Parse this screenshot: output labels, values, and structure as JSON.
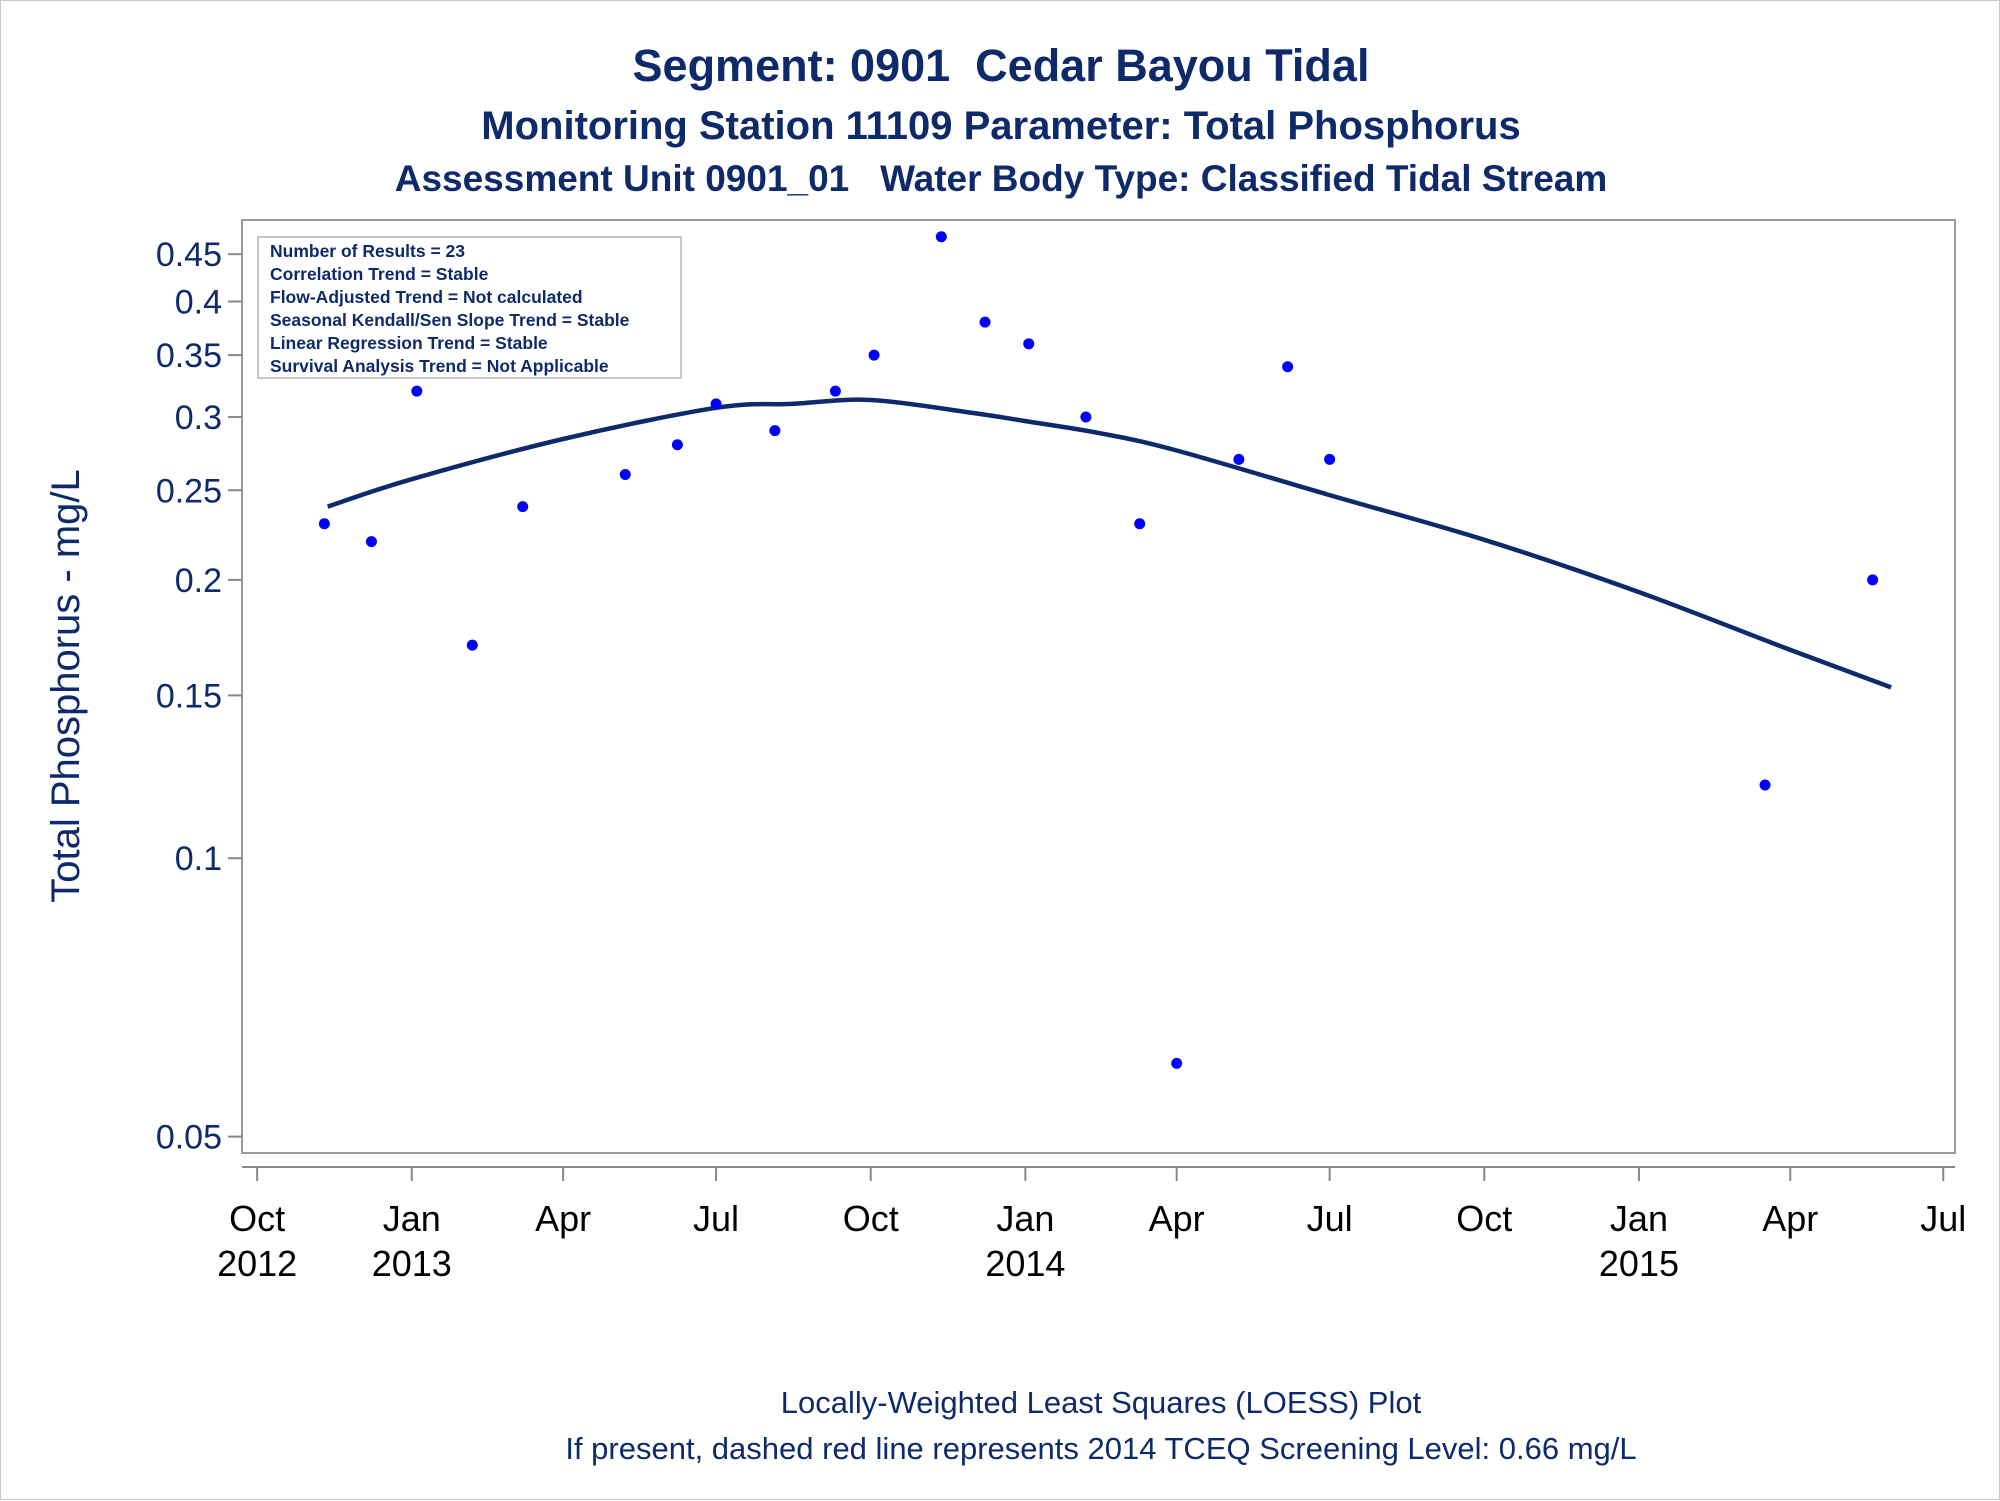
{
  "titles": {
    "line1": "Segment: 0901  Cedar Bayou Tidal",
    "line2": "Monitoring Station 11109 Parameter: Total Phosphorus",
    "line3": "Assessment Unit 0901_01   Water Body Type: Classified Tidal Stream"
  },
  "inset_lines": [
    "Number of Results = 23",
    "Correlation Trend = Stable",
    "Flow-Adjusted Trend = Not calculated",
    "Seasonal Kendall/Sen Slope Trend = Stable",
    "Linear Regression Trend = Stable",
    "Survival Analysis Trend = Not Applicable"
  ],
  "footnotes": [
    "Locally-Weighted Least Squares (LOESS) Plot",
    "If present, dashed red line represents 2014 TCEQ Screening Level: 0.66 mg/L"
  ],
  "colors": {
    "text": "#0e2a6b",
    "points": "#0000ff",
    "loess_line": "#0e2a6b",
    "axis": "#888888"
  },
  "chart_data": {
    "type": "scatter",
    "ylabel": "Total Phosphorus - mg/L",
    "xlabel": "",
    "y_scale": "log",
    "ylim": [
      0.048,
      0.49
    ],
    "xlim": [
      "2012-09-22",
      "2015-07-08"
    ],
    "grid": false,
    "legend": "none",
    "yticks": [
      0.05,
      0.1,
      0.15,
      0.2,
      0.25,
      0.3,
      0.35,
      0.4,
      0.45
    ],
    "ytick_labels": [
      "0.05",
      "0.1",
      "0.15",
      "0.2",
      "0.25",
      "0.3",
      "0.35",
      "0.4",
      "0.45"
    ],
    "xticks": [
      {
        "date": "2012-10-01",
        "label": "Oct",
        "year": "2012"
      },
      {
        "date": "2013-01-01",
        "label": "Jan",
        "year": "2013"
      },
      {
        "date": "2013-04-01",
        "label": "Apr",
        "year": ""
      },
      {
        "date": "2013-07-01",
        "label": "Jul",
        "year": ""
      },
      {
        "date": "2013-10-01",
        "label": "Oct",
        "year": ""
      },
      {
        "date": "2014-01-01",
        "label": "Jan",
        "year": "2014"
      },
      {
        "date": "2014-04-01",
        "label": "Apr",
        "year": ""
      },
      {
        "date": "2014-07-01",
        "label": "Jul",
        "year": ""
      },
      {
        "date": "2014-10-01",
        "label": "Oct",
        "year": ""
      },
      {
        "date": "2015-01-01",
        "label": "Jan",
        "year": "2015"
      },
      {
        "date": "2015-04-01",
        "label": "Apr",
        "year": ""
      },
      {
        "date": "2015-07-01",
        "label": "Jul",
        "year": ""
      }
    ],
    "series": [
      {
        "type": "scatter",
        "points": [
          {
            "x": "2012-11-10",
            "y": 0.23
          },
          {
            "x": "2012-12-08",
            "y": 0.22
          },
          {
            "x": "2013-01-04",
            "y": 0.32
          },
          {
            "x": "2013-02-06",
            "y": 0.17
          },
          {
            "x": "2013-03-08",
            "y": 0.24
          },
          {
            "x": "2013-04-10",
            "y": 0.45
          },
          {
            "x": "2013-05-08",
            "y": 0.26
          },
          {
            "x": "2013-06-08",
            "y": 0.28
          },
          {
            "x": "2013-07-01",
            "y": 0.31
          },
          {
            "x": "2013-08-05",
            "y": 0.29
          },
          {
            "x": "2013-09-10",
            "y": 0.32
          },
          {
            "x": "2013-10-03",
            "y": 0.35
          },
          {
            "x": "2013-11-12",
            "y": 0.47
          },
          {
            "x": "2013-12-08",
            "y": 0.38
          },
          {
            "x": "2014-01-03",
            "y": 0.36
          },
          {
            "x": "2014-02-06",
            "y": 0.3
          },
          {
            "x": "2014-03-10",
            "y": 0.23
          },
          {
            "x": "2014-04-01",
            "y": 0.06
          },
          {
            "x": "2014-05-08",
            "y": 0.27
          },
          {
            "x": "2014-06-06",
            "y": 0.34
          },
          {
            "x": "2014-07-01",
            "y": 0.27
          },
          {
            "x": "2015-03-17",
            "y": 0.12
          },
          {
            "x": "2015-05-20",
            "y": 0.2
          }
        ]
      },
      {
        "type": "line",
        "points": [
          {
            "x": "2012-11-12",
            "y": 0.24
          },
          {
            "x": "2013-01-01",
            "y": 0.257
          },
          {
            "x": "2013-04-01",
            "y": 0.284
          },
          {
            "x": "2013-07-01",
            "y": 0.307
          },
          {
            "x": "2013-08-15",
            "y": 0.31
          },
          {
            "x": "2013-10-01",
            "y": 0.313
          },
          {
            "x": "2013-12-01",
            "y": 0.303
          },
          {
            "x": "2014-01-01",
            "y": 0.297
          },
          {
            "x": "2014-02-15",
            "y": 0.288
          },
          {
            "x": "2014-04-01",
            "y": 0.276
          },
          {
            "x": "2014-07-01",
            "y": 0.247
          },
          {
            "x": "2014-10-01",
            "y": 0.221
          },
          {
            "x": "2015-01-01",
            "y": 0.194
          },
          {
            "x": "2015-04-01",
            "y": 0.168
          },
          {
            "x": "2015-05-31",
            "y": 0.153
          }
        ]
      }
    ]
  }
}
